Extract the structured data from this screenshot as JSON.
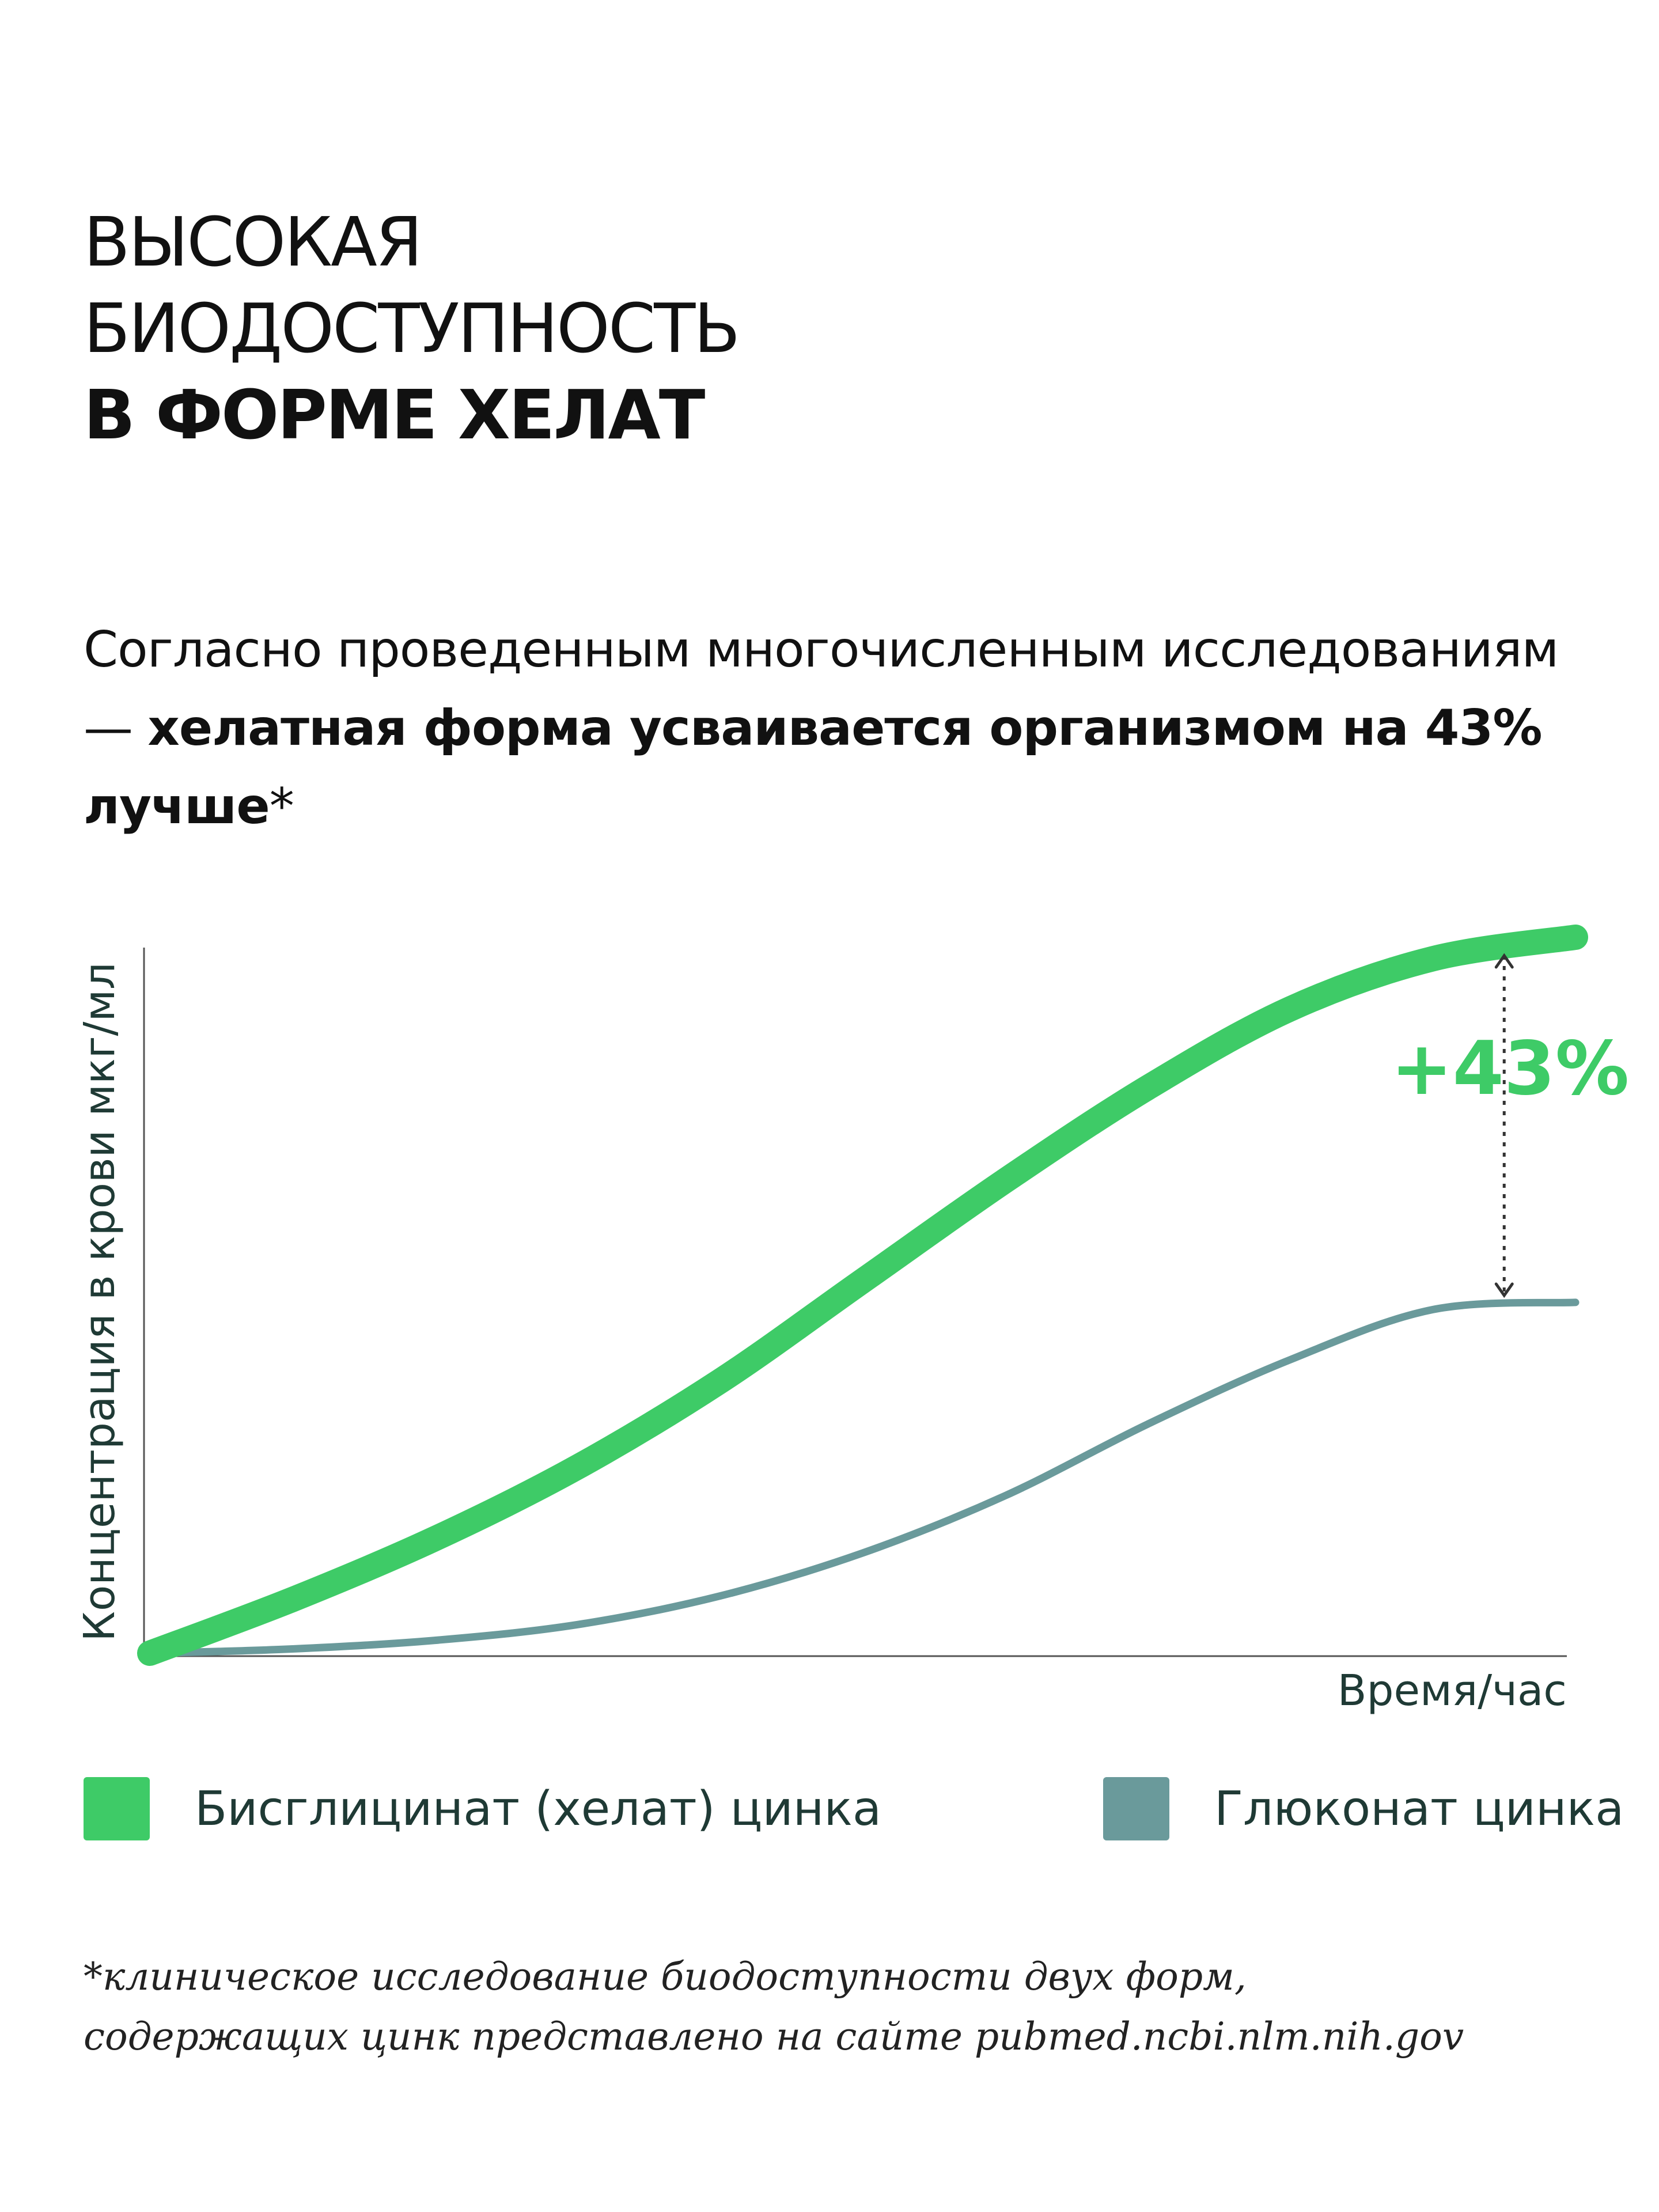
{
  "header": {
    "title_line1": "ВЫСОКАЯ",
    "title_line2": "БИОДОСТУПНОСТЬ",
    "title_line3": "В ФОРМЕ ХЕЛАТ"
  },
  "lead": {
    "text_regular": "Согласно проведенным многочисленным исследованиям — ",
    "text_bold": "хелатная форма усваивается организмом на 43% лучше",
    "asterisk": "*"
  },
  "chart_data": {
    "type": "line",
    "title": "",
    "xlabel": "Время/час",
    "ylabel": "Концентрация в крови мкг/мл",
    "ylim": [
      0,
      100
    ],
    "x": [
      0,
      0.1,
      0.2,
      0.3,
      0.4,
      0.5,
      0.6,
      0.7,
      0.8,
      0.9,
      1.0
    ],
    "series": [
      {
        "name": "Бисглицинат (хелат) цинка",
        "color": "#3ecb67",
        "values": [
          0,
          7.5,
          16,
          26,
          38,
          52,
          66,
          79,
          90,
          97,
          100
        ]
      },
      {
        "name": "Глюконат цинка",
        "color": "#6a9a9b",
        "values": [
          0,
          0.6,
          1.8,
          4,
          8,
          14,
          22,
          32,
          41,
          48,
          49
        ]
      }
    ],
    "annotation": {
      "text": "+43%",
      "color": "#3ecb67",
      "x": 0.95,
      "from_value": 49,
      "to_value": 100
    },
    "grid": false,
    "legend": "bottom"
  },
  "footnote": {
    "line1": "*клиническое исследование биодоступности двух форм,",
    "line2": "содержащих цинк представлено на сайте pubmed.ncbi.nlm.nih.gov"
  }
}
